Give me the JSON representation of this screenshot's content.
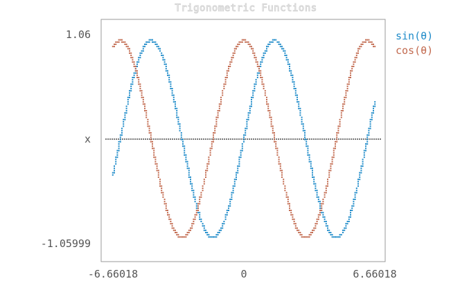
{
  "chart_data": {
    "type": "scatter",
    "title": "Trigonometric Functions",
    "xlabel": "",
    "ylabel": "",
    "xlim": [
      -6.66018,
      6.66018
    ],
    "ylim": [
      -1.05999,
      1.06
    ],
    "x_ticks": [
      "-6.66018",
      "0",
      "6.66018"
    ],
    "y_ticks": [
      "1.06",
      "x",
      "-1.05999"
    ],
    "legend_position": "right",
    "grid": false,
    "series": [
      {
        "name": "sin(θ)",
        "function": "sin",
        "color": "#1f8bc9"
      },
      {
        "name": "cos(θ)",
        "function": "cos",
        "color": "#c26a4f"
      }
    ],
    "x_axis_dotted_line": {
      "y": 0,
      "color": "#777777"
    }
  }
}
